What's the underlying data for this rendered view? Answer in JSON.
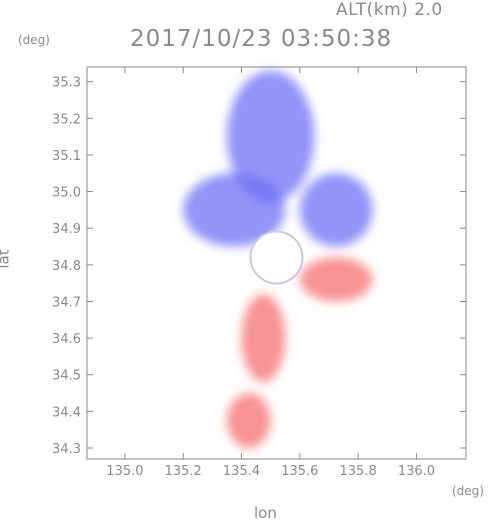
{
  "header": {
    "altitude_label": "ALT(km) 2.0",
    "datetime": "2017/10/23 03:50:38"
  },
  "chart_data": {
    "type": "heatmap",
    "title": "2017/10/23 03:50:38",
    "xlabel": "lon",
    "ylabel": "lat",
    "x_unit": "(deg)",
    "y_unit": "(deg)",
    "xlim": [
      134.87,
      136.17
    ],
    "ylim": [
      34.27,
      35.34
    ],
    "x_ticks": [
      "135.0",
      "135.2",
      "135.4",
      "135.6",
      "135.8",
      "136.0"
    ],
    "y_ticks": [
      "34.3",
      "34.4",
      "34.5",
      "34.6",
      "34.7",
      "34.8",
      "34.9",
      "35.0",
      "35.1",
      "35.2",
      "35.3"
    ],
    "grid": false,
    "colormap": {
      "negative": "#6f6ff5",
      "zero": "#ffffff",
      "positive": "#f56f6f"
    },
    "echo_regions": [
      {
        "sign": "negative",
        "lon": [
          135.35,
          135.65
        ],
        "lat": [
          34.97,
          35.33
        ]
      },
      {
        "sign": "negative",
        "lon": [
          135.2,
          135.55
        ],
        "lat": [
          34.85,
          35.05
        ]
      },
      {
        "sign": "negative",
        "lon": [
          135.6,
          135.85
        ],
        "lat": [
          34.85,
          35.05
        ]
      },
      {
        "sign": "positive",
        "lon": [
          135.6,
          135.85
        ],
        "lat": [
          34.7,
          34.82
        ]
      },
      {
        "sign": "positive",
        "lon": [
          135.4,
          135.55
        ],
        "lat": [
          34.48,
          34.72
        ]
      },
      {
        "sign": "positive",
        "lon": [
          135.35,
          135.5
        ],
        "lat": [
          34.3,
          34.45
        ]
      }
    ]
  }
}
